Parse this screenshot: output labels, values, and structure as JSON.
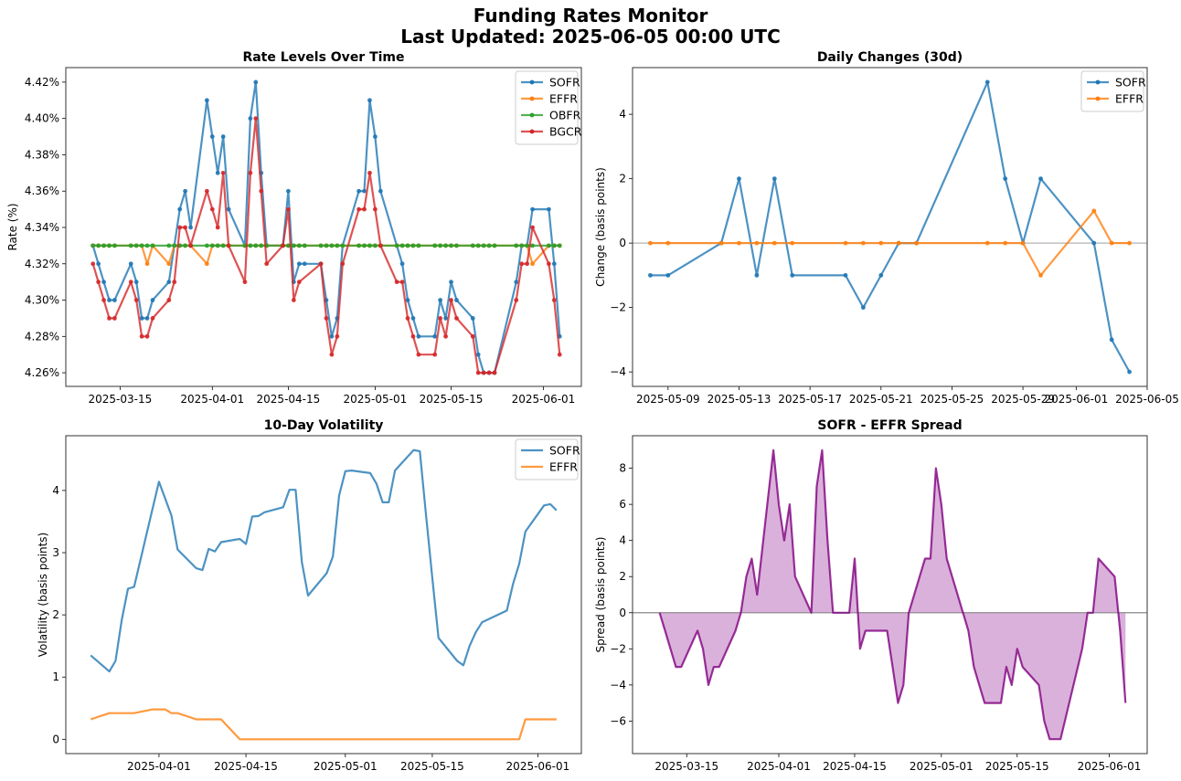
{
  "figure": {
    "title_line1": "Funding Rates Monitor",
    "title_line2": "Last Updated: 2025-06-05 00:00 UTC"
  },
  "colors": {
    "SOFR": "#1f77b4",
    "EFFR": "#ff7f0e",
    "OBFR": "#2ca02c",
    "BGCR": "#d62728",
    "spread": "#800080",
    "spread_fill": "#d6a8d6",
    "zero_line": "#999999"
  },
  "chart_data": [
    {
      "id": "rate_levels",
      "type": "line",
      "title": "Rate Levels Over Time",
      "xlabel": "",
      "ylabel": "Rate (%)",
      "ylim": [
        4.2525,
        4.428
      ],
      "xlim": [
        "2025-03-05",
        "2025-06-08"
      ],
      "yticks": [
        4.26,
        4.28,
        4.3,
        4.32,
        4.34,
        4.36,
        4.38,
        4.4,
        4.42
      ],
      "ytick_labels": [
        "4.26%",
        "4.28%",
        "4.30%",
        "4.32%",
        "4.34%",
        "4.36%",
        "4.38%",
        "4.40%",
        "4.42%"
      ],
      "xticks": [
        "2025-03-15",
        "2025-04-01",
        "2025-04-15",
        "2025-05-01",
        "2025-05-15",
        "2025-06-01"
      ],
      "legend": "top-right",
      "markers": true,
      "x": [
        "2025-03-10",
        "2025-03-11",
        "2025-03-12",
        "2025-03-13",
        "2025-03-14",
        "2025-03-17",
        "2025-03-18",
        "2025-03-19",
        "2025-03-20",
        "2025-03-21",
        "2025-03-24",
        "2025-03-25",
        "2025-03-26",
        "2025-03-27",
        "2025-03-28",
        "2025-03-31",
        "2025-04-01",
        "2025-04-02",
        "2025-04-03",
        "2025-04-04",
        "2025-04-07",
        "2025-04-08",
        "2025-04-09",
        "2025-04-10",
        "2025-04-11",
        "2025-04-14",
        "2025-04-15",
        "2025-04-16",
        "2025-04-17",
        "2025-04-18",
        "2025-04-21",
        "2025-04-22",
        "2025-04-23",
        "2025-04-24",
        "2025-04-25",
        "2025-04-28",
        "2025-04-29",
        "2025-04-30",
        "2025-05-01",
        "2025-05-02",
        "2025-05-05",
        "2025-05-06",
        "2025-05-07",
        "2025-05-08",
        "2025-05-09",
        "2025-05-12",
        "2025-05-13",
        "2025-05-14",
        "2025-05-15",
        "2025-05-16",
        "2025-05-19",
        "2025-05-20",
        "2025-05-21",
        "2025-05-22",
        "2025-05-23",
        "2025-05-27",
        "2025-05-28",
        "2025-05-29",
        "2025-05-30",
        "2025-06-02",
        "2025-06-03",
        "2025-06-04"
      ],
      "series": [
        {
          "name": "SOFR",
          "values": [
            4.33,
            4.32,
            4.31,
            4.3,
            4.3,
            4.32,
            4.31,
            4.29,
            4.29,
            4.3,
            4.31,
            4.33,
            4.35,
            4.36,
            4.34,
            4.41,
            4.39,
            4.37,
            4.39,
            4.35,
            4.33,
            4.4,
            4.42,
            4.37,
            4.33,
            4.33,
            4.36,
            4.31,
            4.32,
            4.32,
            4.32,
            4.3,
            4.28,
            4.29,
            4.33,
            4.36,
            4.36,
            4.41,
            4.39,
            4.36,
            4.33,
            4.32,
            4.3,
            4.29,
            4.28,
            4.28,
            4.3,
            4.29,
            4.31,
            4.3,
            4.29,
            4.27,
            4.26,
            4.26,
            4.26,
            4.31,
            4.33,
            4.33,
            4.35,
            4.35,
            4.32,
            4.28
          ]
        },
        {
          "name": "EFFR",
          "values": [
            4.33,
            4.33,
            4.33,
            4.33,
            4.33,
            4.33,
            4.33,
            4.33,
            4.32,
            4.33,
            4.32,
            4.33,
            4.33,
            4.33,
            4.33,
            4.32,
            4.33,
            4.33,
            4.33,
            4.33,
            4.33,
            4.33,
            4.33,
            4.33,
            4.33,
            4.33,
            4.33,
            4.33,
            4.33,
            4.33,
            4.33,
            4.33,
            4.33,
            4.33,
            4.33,
            4.33,
            4.33,
            4.33,
            4.33,
            4.33,
            4.33,
            4.33,
            4.33,
            4.33,
            4.33,
            4.33,
            4.33,
            4.33,
            4.33,
            4.33,
            4.33,
            4.33,
            4.33,
            4.33,
            4.33,
            4.33,
            4.33,
            4.33,
            4.32,
            4.33,
            4.33,
            4.33
          ]
        },
        {
          "name": "OBFR",
          "values": [
            4.33,
            4.33,
            4.33,
            4.33,
            4.33,
            4.33,
            4.33,
            4.33,
            4.33,
            4.33,
            4.33,
            4.33,
            4.33,
            4.33,
            4.33,
            4.33,
            4.33,
            4.33,
            4.33,
            4.33,
            4.33,
            4.33,
            4.33,
            4.33,
            4.33,
            4.33,
            4.33,
            4.33,
            4.33,
            4.33,
            4.33,
            4.33,
            4.33,
            4.33,
            4.33,
            4.33,
            4.33,
            4.33,
            4.33,
            4.33,
            4.33,
            4.33,
            4.33,
            4.33,
            4.33,
            4.33,
            4.33,
            4.33,
            4.33,
            4.33,
            4.33,
            4.33,
            4.33,
            4.33,
            4.33,
            4.33,
            4.33,
            4.33,
            4.33,
            4.33,
            4.33,
            4.33
          ]
        },
        {
          "name": "BGCR",
          "values": [
            4.32,
            4.31,
            4.3,
            4.29,
            4.29,
            4.31,
            4.3,
            4.28,
            4.28,
            4.29,
            4.3,
            4.31,
            4.34,
            4.34,
            4.33,
            4.36,
            4.35,
            4.34,
            4.37,
            4.33,
            4.31,
            4.37,
            4.4,
            4.36,
            4.32,
            4.33,
            4.35,
            4.3,
            4.31,
            null,
            4.32,
            4.29,
            4.27,
            4.28,
            4.32,
            4.35,
            4.35,
            4.37,
            4.35,
            4.33,
            4.31,
            4.31,
            4.29,
            4.28,
            4.27,
            4.27,
            4.29,
            4.28,
            4.3,
            4.29,
            4.28,
            4.26,
            4.26,
            4.26,
            4.26,
            4.3,
            4.32,
            4.32,
            4.34,
            4.32,
            4.3,
            4.27
          ]
        }
      ]
    },
    {
      "id": "daily_changes",
      "type": "line",
      "title": "Daily Changes (30d)",
      "xlabel": "",
      "ylabel": "Change (basis points)",
      "ylim": [
        -4.45,
        5.45
      ],
      "xlim": [
        "2025-05-07",
        "2025-06-05"
      ],
      "yticks": [
        -4,
        -2,
        0,
        2,
        4
      ],
      "ytick_labels": [
        "−4",
        "−2",
        "0",
        "2",
        "4"
      ],
      "xticks": [
        "2025-05-09",
        "2025-05-13",
        "2025-05-17",
        "2025-05-21",
        "2025-05-25",
        "2025-05-29",
        "2025-06-01",
        "2025-06-05"
      ],
      "legend": "top-right",
      "markers": true,
      "zero_line": true,
      "x": [
        "2025-05-08",
        "2025-05-09",
        "2025-05-12",
        "2025-05-13",
        "2025-05-14",
        "2025-05-15",
        "2025-05-16",
        "2025-05-19",
        "2025-05-20",
        "2025-05-21",
        "2025-05-22",
        "2025-05-23",
        "2025-05-27",
        "2025-05-28",
        "2025-05-29",
        "2025-05-30",
        "2025-06-02",
        "2025-06-03",
        "2025-06-04"
      ],
      "series": [
        {
          "name": "SOFR",
          "values": [
            -1,
            -1,
            0,
            2,
            -1,
            2,
            -1,
            -1,
            -2,
            -1,
            0,
            0,
            5,
            2,
            0,
            2,
            0,
            -3,
            -4
          ]
        },
        {
          "name": "EFFR",
          "values": [
            0,
            0,
            0,
            0,
            0,
            0,
            0,
            0,
            0,
            0,
            0,
            0,
            0,
            0,
            0,
            -1,
            1,
            0,
            0
          ]
        }
      ]
    },
    {
      "id": "volatility",
      "type": "line",
      "title": "10-Day Volatility",
      "xlabel": "",
      "ylabel": "Volatility (basis points)",
      "ylim": [
        -0.23,
        4.88
      ],
      "xlim": [
        "2025-03-17",
        "2025-06-08"
      ],
      "yticks": [
        0,
        1,
        2,
        3,
        4
      ],
      "ytick_labels": [
        "0",
        "1",
        "2",
        "3",
        "4"
      ],
      "xticks": [
        "2025-04-01",
        "2025-04-15",
        "2025-05-01",
        "2025-05-15",
        "2025-06-01"
      ],
      "legend": "top-right",
      "markers": false,
      "x": [
        "2025-03-21",
        "2025-03-24",
        "2025-03-25",
        "2025-03-26",
        "2025-03-27",
        "2025-03-28",
        "2025-03-31",
        "2025-04-01",
        "2025-04-02",
        "2025-04-03",
        "2025-04-04",
        "2025-04-07",
        "2025-04-08",
        "2025-04-09",
        "2025-04-10",
        "2025-04-11",
        "2025-04-14",
        "2025-04-15",
        "2025-04-16",
        "2025-04-17",
        "2025-04-18",
        "2025-04-21",
        "2025-04-22",
        "2025-04-23",
        "2025-04-24",
        "2025-04-25",
        "2025-04-28",
        "2025-04-29",
        "2025-04-30",
        "2025-05-01",
        "2025-05-02",
        "2025-05-05",
        "2025-05-06",
        "2025-05-07",
        "2025-05-08",
        "2025-05-09",
        "2025-05-12",
        "2025-05-13",
        "2025-05-14",
        "2025-05-15",
        "2025-05-16",
        "2025-05-19",
        "2025-05-20",
        "2025-05-21",
        "2025-05-22",
        "2025-05-23",
        "2025-05-27",
        "2025-05-28",
        "2025-05-29",
        "2025-05-30",
        "2025-06-02",
        "2025-06-03",
        "2025-06-04"
      ],
      "series": [
        {
          "name": "SOFR",
          "values": [
            1.35,
            1.09,
            1.26,
            1.92,
            2.42,
            2.45,
            3.72,
            4.14,
            3.87,
            3.6,
            3.05,
            2.75,
            2.72,
            3.06,
            3.02,
            3.17,
            3.22,
            3.14,
            3.58,
            3.59,
            3.65,
            3.73,
            4.01,
            4.01,
            2.85,
            2.31,
            2.67,
            2.94,
            3.92,
            4.31,
            4.32,
            4.28,
            4.11,
            3.81,
            3.81,
            4.32,
            4.65,
            4.63,
            3.6,
            2.6,
            1.63,
            1.26,
            1.19,
            1.5,
            1.72,
            1.88,
            2.07,
            2.5,
            2.82,
            3.34,
            3.76,
            3.78,
            3.68
          ]
        },
        {
          "name": "EFFR",
          "values": [
            0.32,
            0.42,
            0.42,
            0.42,
            0.42,
            0.42,
            0.48,
            0.48,
            0.48,
            0.42,
            0.42,
            0.32,
            0.32,
            0.32,
            0.32,
            0.32,
            0.0,
            0.0,
            0.0,
            0.0,
            0.0,
            0.0,
            0.0,
            0.0,
            0.0,
            0.0,
            0.0,
            0.0,
            0.0,
            0.0,
            0.0,
            0.0,
            0.0,
            0.0,
            0.0,
            0.0,
            0.0,
            0.0,
            0.0,
            0.0,
            0.0,
            0.0,
            0.0,
            0.0,
            0.0,
            0.0,
            0.0,
            0.0,
            0.0,
            0.32,
            0.32,
            0.32,
            0.32
          ]
        }
      ]
    },
    {
      "id": "spread",
      "type": "area",
      "title": "SOFR - EFFR Spread",
      "xlabel": "",
      "ylabel": "Spread (basis points)",
      "ylim": [
        -7.8,
        9.8
      ],
      "xlim": [
        "2025-03-05",
        "2025-06-08"
      ],
      "yticks": [
        -6,
        -4,
        -2,
        0,
        2,
        4,
        6,
        8
      ],
      "ytick_labels": [
        "−6",
        "−4",
        "−2",
        "0",
        "2",
        "4",
        "6",
        "8"
      ],
      "xticks": [
        "2025-03-15",
        "2025-04-01",
        "2025-04-15",
        "2025-05-01",
        "2025-05-15",
        "2025-06-01"
      ],
      "legend": "none",
      "zero_line": true,
      "x": [
        "2025-03-10",
        "2025-03-11",
        "2025-03-12",
        "2025-03-13",
        "2025-03-14",
        "2025-03-17",
        "2025-03-18",
        "2025-03-19",
        "2025-03-20",
        "2025-03-21",
        "2025-03-24",
        "2025-03-25",
        "2025-03-26",
        "2025-03-27",
        "2025-03-28",
        "2025-03-31",
        "2025-04-01",
        "2025-04-02",
        "2025-04-03",
        "2025-04-04",
        "2025-04-07",
        "2025-04-08",
        "2025-04-09",
        "2025-04-10",
        "2025-04-11",
        "2025-04-14",
        "2025-04-15",
        "2025-04-16",
        "2025-04-17",
        "2025-04-18",
        "2025-04-21",
        "2025-04-22",
        "2025-04-23",
        "2025-04-24",
        "2025-04-25",
        "2025-04-28",
        "2025-04-29",
        "2025-04-30",
        "2025-05-01",
        "2025-05-02",
        "2025-05-05",
        "2025-05-06",
        "2025-05-07",
        "2025-05-08",
        "2025-05-09",
        "2025-05-12",
        "2025-05-13",
        "2025-05-14",
        "2025-05-15",
        "2025-05-16",
        "2025-05-19",
        "2025-05-20",
        "2025-05-21",
        "2025-05-22",
        "2025-05-23",
        "2025-05-27",
        "2025-05-28",
        "2025-05-29",
        "2025-05-30",
        "2025-06-02",
        "2025-06-03",
        "2025-06-04"
      ],
      "series": [
        {
          "name": "SOFR - EFFR",
          "values": [
            0,
            -1,
            -2,
            -3,
            -3,
            -1,
            -2,
            -4,
            -3,
            -3,
            -1,
            0,
            2,
            3,
            1,
            9,
            6,
            4,
            6,
            2,
            0,
            7,
            9,
            4,
            0,
            0,
            3,
            -2,
            -1,
            -1,
            -1,
            -3,
            -5,
            -4,
            0,
            3,
            3,
            8,
            6,
            3,
            0,
            -1,
            -3,
            -4,
            -5,
            -5,
            -3,
            -4,
            -2,
            -3,
            -4,
            -6,
            -7,
            -7,
            -7,
            -2,
            0,
            0,
            3,
            2,
            -1,
            -5
          ]
        }
      ]
    }
  ]
}
